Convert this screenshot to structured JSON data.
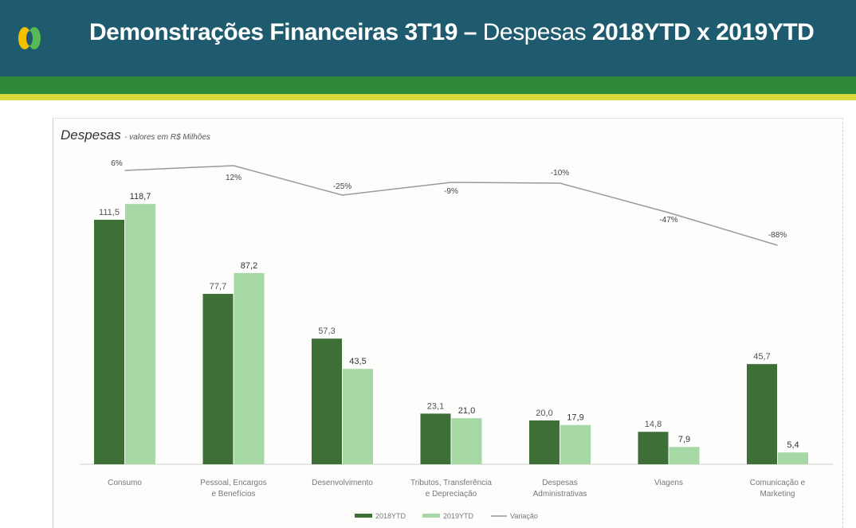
{
  "header": {
    "title_bold": "Demonstrações Financeiras 3T19 –",
    "title_light": "Despesas",
    "title_bold2": "2018YTD x 2019YTD"
  },
  "panel": {
    "title": "Despesas",
    "subtitle": "- valores em R$ Milhões"
  },
  "colors": {
    "header_bg": "#1e5b6e",
    "band_green": "#2e8a3a",
    "band_yellow": "#d7d83a",
    "series_2018": "#3e6f37",
    "series_2019": "#a6d8a6",
    "variation_line": "#9a9a9a"
  },
  "chart_data": {
    "type": "bar",
    "categories": [
      "Consumo",
      "Pessoal, Encargos e Benefícios",
      "Desenvolvimento",
      "Tributos, Transferência e Depreciação",
      "Despesas Administrativas",
      "Viagens",
      "Comunicação e Marketing"
    ],
    "series": [
      {
        "name": "2018YTD",
        "values": [
          111.5,
          77.7,
          57.3,
          23.1,
          20.0,
          14.8,
          45.7
        ],
        "labels": [
          "111,5",
          "77,7",
          "57,3",
          "23,1",
          "20,0",
          "14,8",
          "45,7"
        ]
      },
      {
        "name": "2019YTD",
        "values": [
          118.7,
          87.2,
          43.5,
          21.0,
          17.9,
          7.9,
          5.4
        ],
        "labels": [
          "118,7",
          "87,2",
          "43,5",
          "21,0",
          "17,9",
          "7,9",
          "5,4"
        ]
      }
    ],
    "variation": {
      "name": "Variação",
      "values": [
        6,
        12,
        -25,
        -9,
        -10,
        -47,
        -88
      ],
      "labels": [
        "6%",
        "12%",
        "-25%",
        "-9%",
        "-10%",
        "-47%",
        "-88%"
      ]
    },
    "legend": [
      "2018YTD",
      "2019YTD",
      "Variação"
    ],
    "legend_position": "bottom",
    "ylim": [
      0,
      130
    ],
    "grid": false
  }
}
